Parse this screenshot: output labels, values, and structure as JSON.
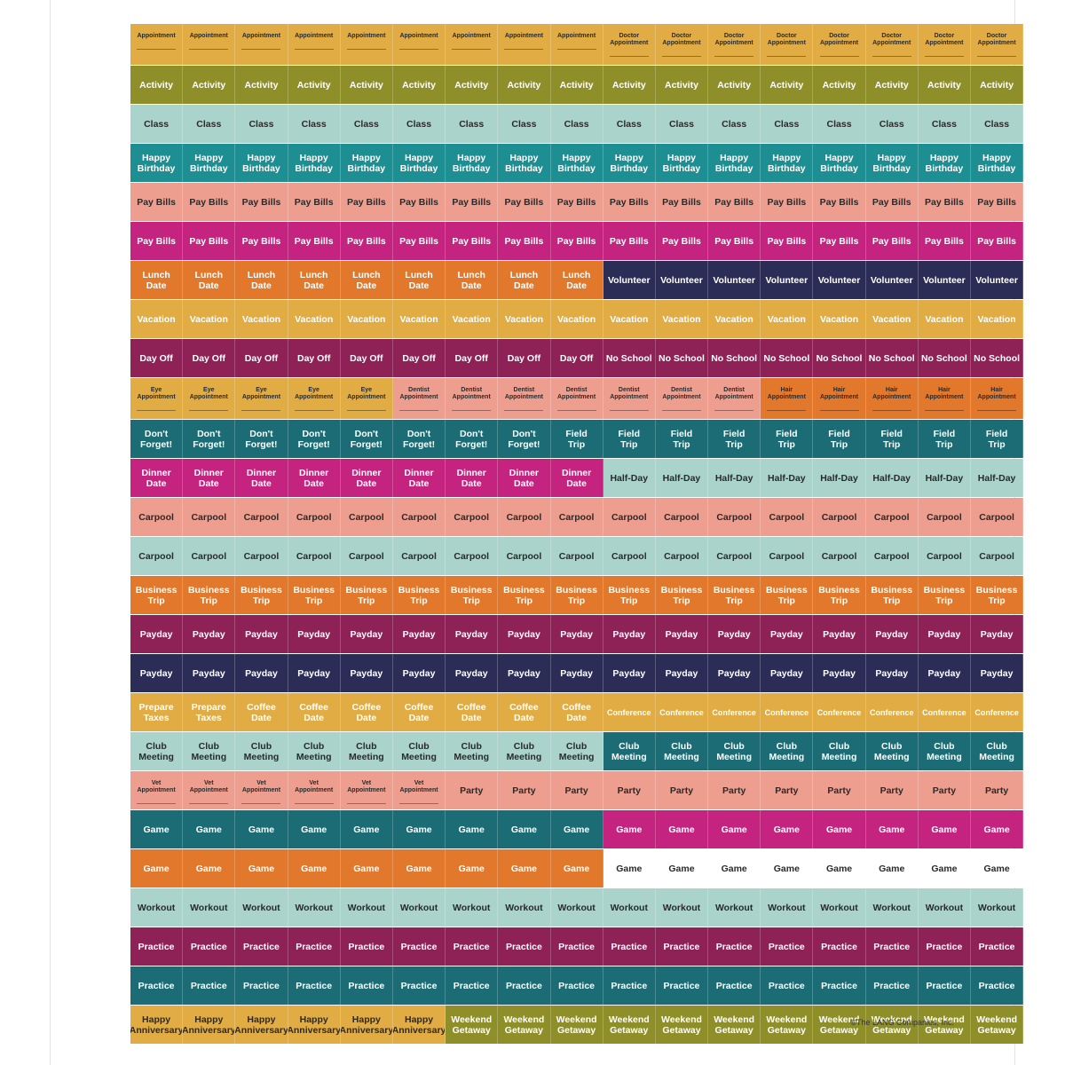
{
  "colors": {
    "mustard": "#e0ac43",
    "olive": "#8f8f2a",
    "mint": "#a9d3cb",
    "teal": "#1d8f93",
    "salmon": "#ee9e8f",
    "magenta": "#c4247f",
    "orange": "#e2782b",
    "navy": "#2c2d57",
    "plum": "#8e2156",
    "darkteal": "#1b6c74",
    "white": "#ffffff"
  },
  "rows": [
    {
      "tiny": true,
      "segments": [
        {
          "label": "Appointment",
          "count": 9,
          "color": "mustard"
        },
        {
          "label": "Doctor\nAppointment",
          "count": 8,
          "color": "mustard"
        }
      ]
    },
    {
      "segments": [
        {
          "label": "Activity",
          "count": 17,
          "color": "olive",
          "light": true
        }
      ]
    },
    {
      "segments": [
        {
          "label": "Class",
          "count": 17,
          "color": "mint"
        }
      ]
    },
    {
      "segments": [
        {
          "label": "Happy\nBirthday",
          "count": 17,
          "color": "teal",
          "light": true
        }
      ]
    },
    {
      "segments": [
        {
          "label": "Pay Bills",
          "count": 17,
          "color": "salmon"
        }
      ]
    },
    {
      "segments": [
        {
          "label": "Pay Bills",
          "count": 17,
          "color": "magenta",
          "light": true
        }
      ]
    },
    {
      "segments": [
        {
          "label": "Lunch\nDate",
          "count": 9,
          "color": "orange",
          "light": true
        },
        {
          "label": "Volunteer",
          "count": 8,
          "color": "navy",
          "light": true
        }
      ]
    },
    {
      "segments": [
        {
          "label": "Vacation",
          "count": 17,
          "color": "mustard",
          "light": true
        }
      ]
    },
    {
      "segments": [
        {
          "label": "Day Off",
          "count": 9,
          "color": "plum",
          "light": true
        },
        {
          "label": "No School",
          "count": 8,
          "color": "plum",
          "light": true
        }
      ]
    },
    {
      "tiny": true,
      "segments": [
        {
          "label": "Eye\nAppointment",
          "count": 5,
          "color": "mustard"
        },
        {
          "label": "Dentist\nAppointment",
          "count": 7,
          "color": "salmon"
        },
        {
          "label": "Hair\nAppointment",
          "count": 5,
          "color": "orange"
        }
      ]
    },
    {
      "segments": [
        {
          "label": "Don't\nForget!",
          "count": 8,
          "color": "darkteal",
          "light": true
        },
        {
          "label": "Field\nTrip",
          "count": 9,
          "color": "darkteal",
          "light": true
        }
      ]
    },
    {
      "segments": [
        {
          "label": "Dinner\nDate",
          "count": 9,
          "color": "magenta",
          "light": true
        },
        {
          "label": "Half-Day",
          "count": 8,
          "color": "mint"
        }
      ]
    },
    {
      "segments": [
        {
          "label": "Carpool",
          "count": 17,
          "color": "salmon"
        }
      ]
    },
    {
      "segments": [
        {
          "label": "Carpool",
          "count": 17,
          "color": "mint"
        }
      ]
    },
    {
      "segments": [
        {
          "label": "Business\nTrip",
          "count": 17,
          "color": "orange",
          "light": true
        }
      ]
    },
    {
      "segments": [
        {
          "label": "Payday",
          "count": 17,
          "color": "plum",
          "light": true
        }
      ]
    },
    {
      "segments": [
        {
          "label": "Payday",
          "count": 17,
          "color": "navy",
          "light": true
        }
      ]
    },
    {
      "segments": [
        {
          "label": "Prepare\nTaxes",
          "count": 2,
          "color": "mustard",
          "light": true
        },
        {
          "label": "Coffee\nDate",
          "count": 7,
          "color": "mustard",
          "light": true
        },
        {
          "label": "Conference",
          "count": 8,
          "color": "mustard",
          "light": true,
          "small": true
        }
      ]
    },
    {
      "segments": [
        {
          "label": "Club\nMeeting",
          "count": 9,
          "color": "mint"
        },
        {
          "label": "Club\nMeeting",
          "count": 8,
          "color": "darkteal",
          "light": true
        }
      ]
    },
    {
      "segments": [
        {
          "label": "Vet\nAppointment",
          "count": 6,
          "color": "salmon",
          "tiny": true
        },
        {
          "label": "Party",
          "count": 11,
          "color": "salmon"
        }
      ]
    },
    {
      "segments": [
        {
          "label": "Game",
          "count": 9,
          "color": "darkteal",
          "light": true
        },
        {
          "label": "Game",
          "count": 8,
          "color": "magenta",
          "light": true
        }
      ]
    },
    {
      "segments": [
        {
          "label": "Game",
          "count": 9,
          "color": "orange",
          "light": true
        },
        {
          "label": "Game",
          "count": 8,
          "color": "white"
        }
      ]
    },
    {
      "segments": [
        {
          "label": "Workout",
          "count": 17,
          "color": "mint"
        }
      ]
    },
    {
      "segments": [
        {
          "label": "Practice",
          "count": 17,
          "color": "plum",
          "light": true
        }
      ]
    },
    {
      "segments": [
        {
          "label": "Practice",
          "count": 17,
          "color": "darkteal",
          "light": true
        }
      ]
    },
    {
      "segments": [
        {
          "label": "Happy\nAnniversary",
          "count": 6,
          "color": "mustard"
        },
        {
          "label": "Weekend\nGetaway",
          "count": 11,
          "color": "olive",
          "light": true
        }
      ]
    }
  ],
  "copyright": "©The LANG Companies, Inc."
}
